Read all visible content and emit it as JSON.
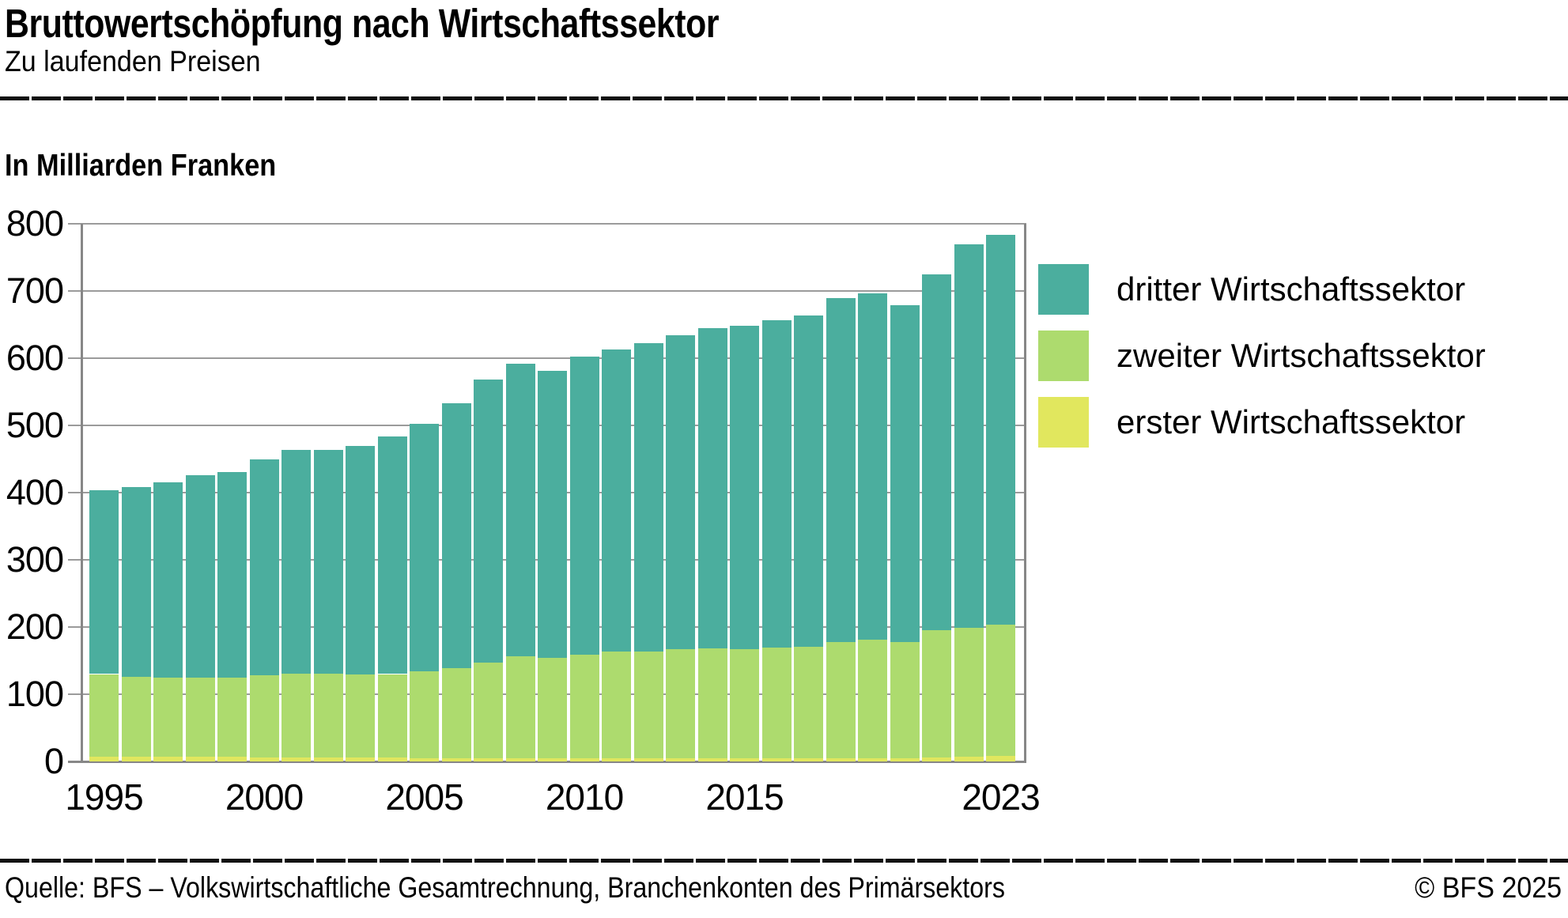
{
  "header": {
    "title": "Bruttowertschöpfung nach Wirtschaftssektor",
    "subtitle": "Zu laufenden Preisen"
  },
  "y_axis_title": "In Milliarden Franken",
  "chart_data": {
    "type": "bar",
    "stacked": true,
    "title": "Bruttowertschöpfung nach Wirtschaftssektor",
    "subtitle": "Zu laufenden Preisen",
    "ylabel": "In Milliarden Franken",
    "xlabel": "",
    "ylim": [
      0,
      800
    ],
    "ytick_step": 100,
    "grid": true,
    "legend_position": "right",
    "categories": [
      1995,
      1996,
      1997,
      1998,
      1999,
      2000,
      2001,
      2002,
      2003,
      2004,
      2005,
      2006,
      2007,
      2008,
      2009,
      2010,
      2011,
      2012,
      2013,
      2014,
      2015,
      2016,
      2017,
      2018,
      2019,
      2020,
      2021,
      2022,
      2023
    ],
    "xticks": [
      {
        "label": "1995",
        "index": 0
      },
      {
        "label": "2000",
        "index": 5
      },
      {
        "label": "2005",
        "index": 10
      },
      {
        "label": "2010",
        "index": 15
      },
      {
        "label": "2015",
        "index": 20
      },
      {
        "label": "2023",
        "index": 28
      }
    ],
    "series": [
      {
        "name": "erster Wirtschaftssektor",
        "color": "#e1e75e",
        "values": [
          7,
          7,
          7,
          7,
          7,
          6,
          6,
          6,
          6,
          6,
          5,
          5,
          5,
          5,
          5,
          5,
          5,
          5,
          5,
          5,
          5,
          5,
          5,
          5,
          5,
          5,
          6,
          7,
          8
        ]
      },
      {
        "name": "zweiter Wirtschaftssektor",
        "color": "#addb6e",
        "values": [
          123,
          119,
          118,
          118,
          118,
          122,
          125,
          125,
          124,
          124,
          129,
          134,
          142,
          152,
          149,
          154,
          158,
          158,
          162,
          163,
          162,
          164,
          166,
          173,
          176,
          173,
          189,
          192,
          195
        ]
      },
      {
        "name": "dritter Wirtschaftssektor",
        "color": "#4bae9e",
        "values": [
          274,
          282,
          290,
          301,
          306,
          322,
          332,
          333,
          340,
          354,
          368,
          394,
          421,
          435,
          427,
          443,
          450,
          459,
          467,
          477,
          481,
          488,
          493,
          511,
          516,
          501,
          530,
          571,
          581
        ]
      }
    ]
  },
  "legend": {
    "items": [
      {
        "label": "dritter Wirtschaftssektor",
        "color": "#4bae9e"
      },
      {
        "label": "zweiter Wirtschaftssektor",
        "color": "#addb6e"
      },
      {
        "label": "erster Wirtschaftssektor",
        "color": "#e1e75e"
      }
    ]
  },
  "footer": {
    "source": "Quelle: BFS – Volkswirtschaftliche Gesamtrechnung, Branchenkonten des Primärsektors",
    "copyright": "© BFS 2025"
  }
}
